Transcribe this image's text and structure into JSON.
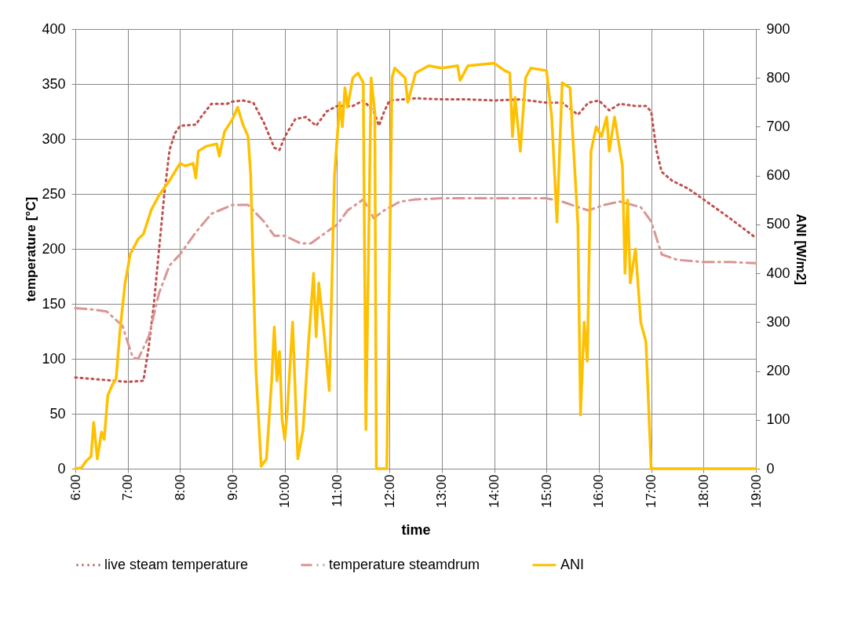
{
  "chart_data": {
    "type": "line",
    "xlabel": "time",
    "ylabel": "temperature [°C]",
    "y2label": "ANI [W/m2]",
    "xlim": [
      6,
      19
    ],
    "xticks": [
      {
        "value": 6,
        "label": "6:00"
      },
      {
        "value": 7,
        "label": "7:00"
      },
      {
        "value": 8,
        "label": "8:00"
      },
      {
        "value": 9,
        "label": "9:00"
      },
      {
        "value": 10,
        "label": "10:00"
      },
      {
        "value": 11,
        "label": "11:00"
      },
      {
        "value": 12,
        "label": "12:00"
      },
      {
        "value": 13,
        "label": "13:00"
      },
      {
        "value": 14,
        "label": "14:00"
      },
      {
        "value": 15,
        "label": "15:00"
      },
      {
        "value": 16,
        "label": "16:00"
      },
      {
        "value": 17,
        "label": "17:00"
      },
      {
        "value": 18,
        "label": "18:00"
      },
      {
        "value": 19,
        "label": "19:00"
      }
    ],
    "ylim": [
      0,
      400
    ],
    "yticks": [
      0,
      50,
      100,
      150,
      200,
      250,
      300,
      350,
      400
    ],
    "y2lim": [
      0,
      900
    ],
    "y2ticks": [
      0,
      100,
      200,
      300,
      400,
      500,
      600,
      700,
      800,
      900
    ],
    "grid": true,
    "legend": "bottom",
    "marker": "none",
    "series": [
      {
        "name": "live steam temperature",
        "color": "#c0504d",
        "line_style": "dotted",
        "x": [
          6,
          6.5,
          7,
          7.3,
          7.4,
          7.5,
          7.6,
          7.7,
          7.8,
          7.9,
          8,
          8.3,
          8.4,
          8.6,
          8.9,
          9,
          9.2,
          9.4,
          9.6,
          9.8,
          9.9,
          10,
          10.2,
          10.4,
          10.6,
          10.8,
          11,
          11.3,
          11.5,
          11.7,
          11.8,
          11.9,
          12,
          12.5,
          13,
          13.5,
          14,
          14.5,
          15,
          15.3,
          15.6,
          15.8,
          16,
          16.2,
          16.4,
          16.7,
          16.9,
          17,
          17.1,
          17.2,
          17.4,
          17.7,
          18,
          18.5,
          19
        ],
        "values": [
          83,
          81,
          79,
          80,
          110,
          150,
          200,
          250,
          290,
          305,
          312,
          313,
          320,
          332,
          332,
          334,
          335,
          333,
          315,
          292,
          290,
          302,
          318,
          320,
          312,
          325,
          330,
          330,
          335,
          325,
          312,
          325,
          335,
          337,
          336,
          336,
          335,
          336,
          333,
          333,
          322,
          333,
          335,
          326,
          332,
          330,
          330,
          325,
          290,
          270,
          262,
          255,
          245,
          228,
          210
        ]
      },
      {
        "name": "temperature steamdrum",
        "color": "#d99694",
        "line_style": "dashed",
        "x": [
          6,
          6.3,
          6.6,
          6.9,
          7,
          7.1,
          7.2,
          7.4,
          7.6,
          7.8,
          8,
          8.3,
          8.6,
          9,
          9.3,
          9.6,
          9.8,
          10,
          10.3,
          10.5,
          10.7,
          11,
          11.2,
          11.5,
          11.7,
          11.9,
          12.2,
          12.5,
          13,
          13.5,
          14,
          14.5,
          15,
          15.3,
          15.6,
          15.8,
          16.1,
          16.4,
          16.8,
          17,
          17.2,
          17.5,
          18,
          18.5,
          19
        ],
        "values": [
          146,
          145,
          143,
          130,
          115,
          101,
          100,
          120,
          160,
          185,
          195,
          215,
          232,
          240,
          240,
          225,
          212,
          212,
          205,
          205,
          212,
          222,
          235,
          245,
          228,
          235,
          243,
          245,
          246,
          246,
          246,
          246,
          246,
          243,
          238,
          235,
          240,
          243,
          238,
          225,
          195,
          190,
          188,
          188,
          187
        ]
      },
      {
        "name": "ANI",
        "color": "#ffc000",
        "line_style": "solid",
        "axis": "y2",
        "x": [
          6,
          6.12,
          6.2,
          6.3,
          6.35,
          6.42,
          6.5,
          6.55,
          6.62,
          6.7,
          6.78,
          6.85,
          6.95,
          7.05,
          7.2,
          7.3,
          7.45,
          7.6,
          7.8,
          8,
          8.1,
          8.25,
          8.3,
          8.35,
          8.5,
          8.7,
          8.75,
          8.85,
          9,
          9.1,
          9.2,
          9.3,
          9.35,
          9.45,
          9.55,
          9.65,
          9.75,
          9.8,
          9.85,
          9.9,
          9.95,
          10,
          10.05,
          10.15,
          10.25,
          10.35,
          10.45,
          10.55,
          10.6,
          10.65,
          10.75,
          10.85,
          10.95,
          11.05,
          11.1,
          11.15,
          11.2,
          11.3,
          11.4,
          11.5,
          11.55,
          11.65,
          11.72,
          11.75,
          11.95,
          12.05,
          12.1,
          12.3,
          12.35,
          12.5,
          12.75,
          13,
          13.3,
          13.35,
          13.5,
          14,
          14.2,
          14.3,
          14.35,
          14.4,
          14.5,
          14.6,
          14.7,
          15,
          15.1,
          15.2,
          15.3,
          15.45,
          15.6,
          15.65,
          15.72,
          15.78,
          15.85,
          15.95,
          16.05,
          16.15,
          16.2,
          16.3,
          16.45,
          16.5,
          16.55,
          16.6,
          16.7,
          16.8,
          16.9,
          17,
          19
        ],
        "values": [
          0,
          2,
          15,
          25,
          95,
          20,
          75,
          60,
          150,
          170,
          185,
          280,
          380,
          440,
          470,
          480,
          530,
          560,
          590,
          625,
          620,
          625,
          595,
          650,
          660,
          665,
          640,
          690,
          715,
          740,
          705,
          680,
          600,
          200,
          5,
          20,
          180,
          290,
          180,
          240,
          100,
          60,
          120,
          300,
          20,
          80,
          250,
          400,
          270,
          380,
          280,
          160,
          600,
          750,
          700,
          780,
          740,
          800,
          810,
          790,
          80,
          800,
          730,
          0,
          0,
          800,
          820,
          800,
          750,
          810,
          825,
          820,
          825,
          795,
          825,
          830,
          815,
          810,
          680,
          760,
          650,
          800,
          820,
          815,
          720,
          505,
          790,
          780,
          500,
          110,
          300,
          220,
          650,
          700,
          680,
          720,
          650,
          720,
          620,
          400,
          550,
          380,
          450,
          300,
          260,
          0,
          0
        ]
      }
    ]
  }
}
